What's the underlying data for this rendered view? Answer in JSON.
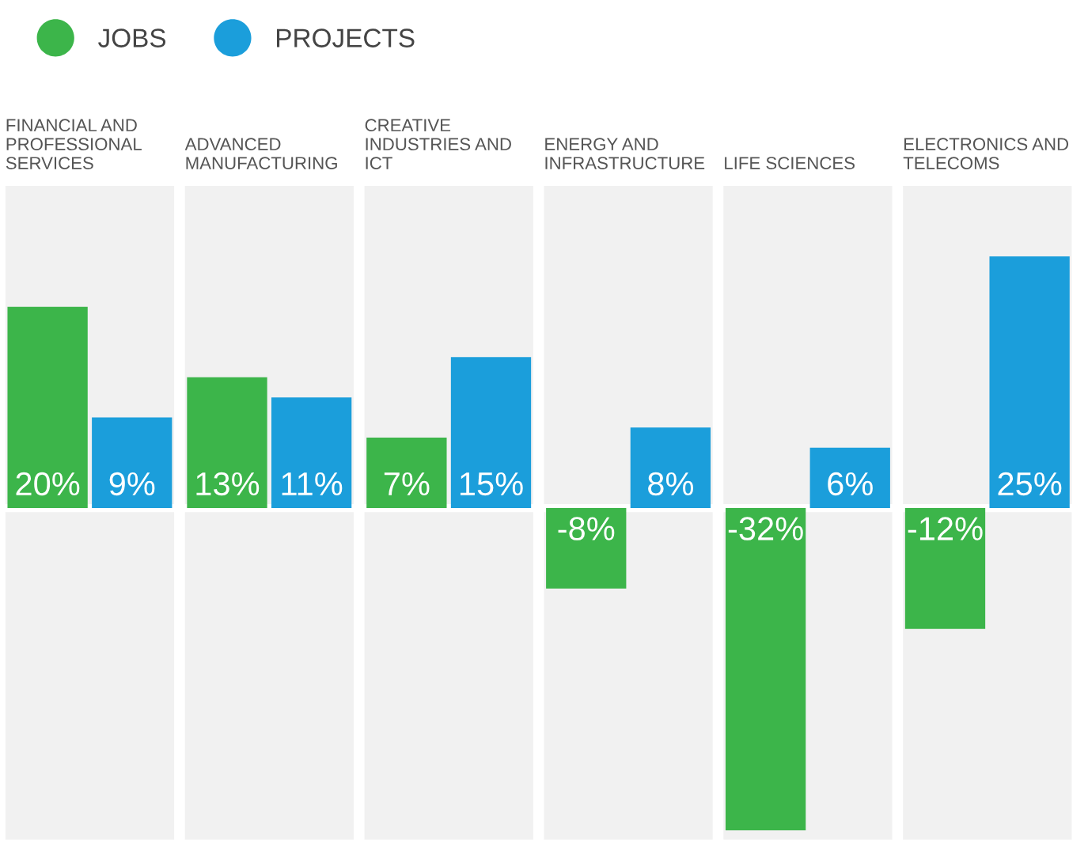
{
  "chart_data": {
    "type": "bar",
    "categories": [
      "FINANCIAL AND\nPROFESSIONAL\nSERVICES",
      "ADVANCED\nMANUFACTURING",
      "CREATIVE\nINDUSTRIES AND\nICT",
      "ENERGY AND\nINFRASTRUCTURE",
      "LIFE SCIENCES",
      "ELECTRONICS AND\nTELECOMS"
    ],
    "series": [
      {
        "name": "JOBS",
        "color": "#3cb54a",
        "values": [
          20,
          13,
          7,
          -8,
          -32,
          -12
        ],
        "value_labels": [
          "20%",
          "13%",
          "7%",
          "-8%",
          "-32%",
          "-12%"
        ]
      },
      {
        "name": "PROJECTS",
        "color": "#1b9edb",
        "values": [
          9,
          11,
          15,
          8,
          6,
          25
        ],
        "value_labels": [
          "9%",
          "11%",
          "15%",
          "8%",
          "6%",
          "25%"
        ]
      }
    ],
    "legend": "top left",
    "tick_labels": "x",
    "grid": false
  }
}
